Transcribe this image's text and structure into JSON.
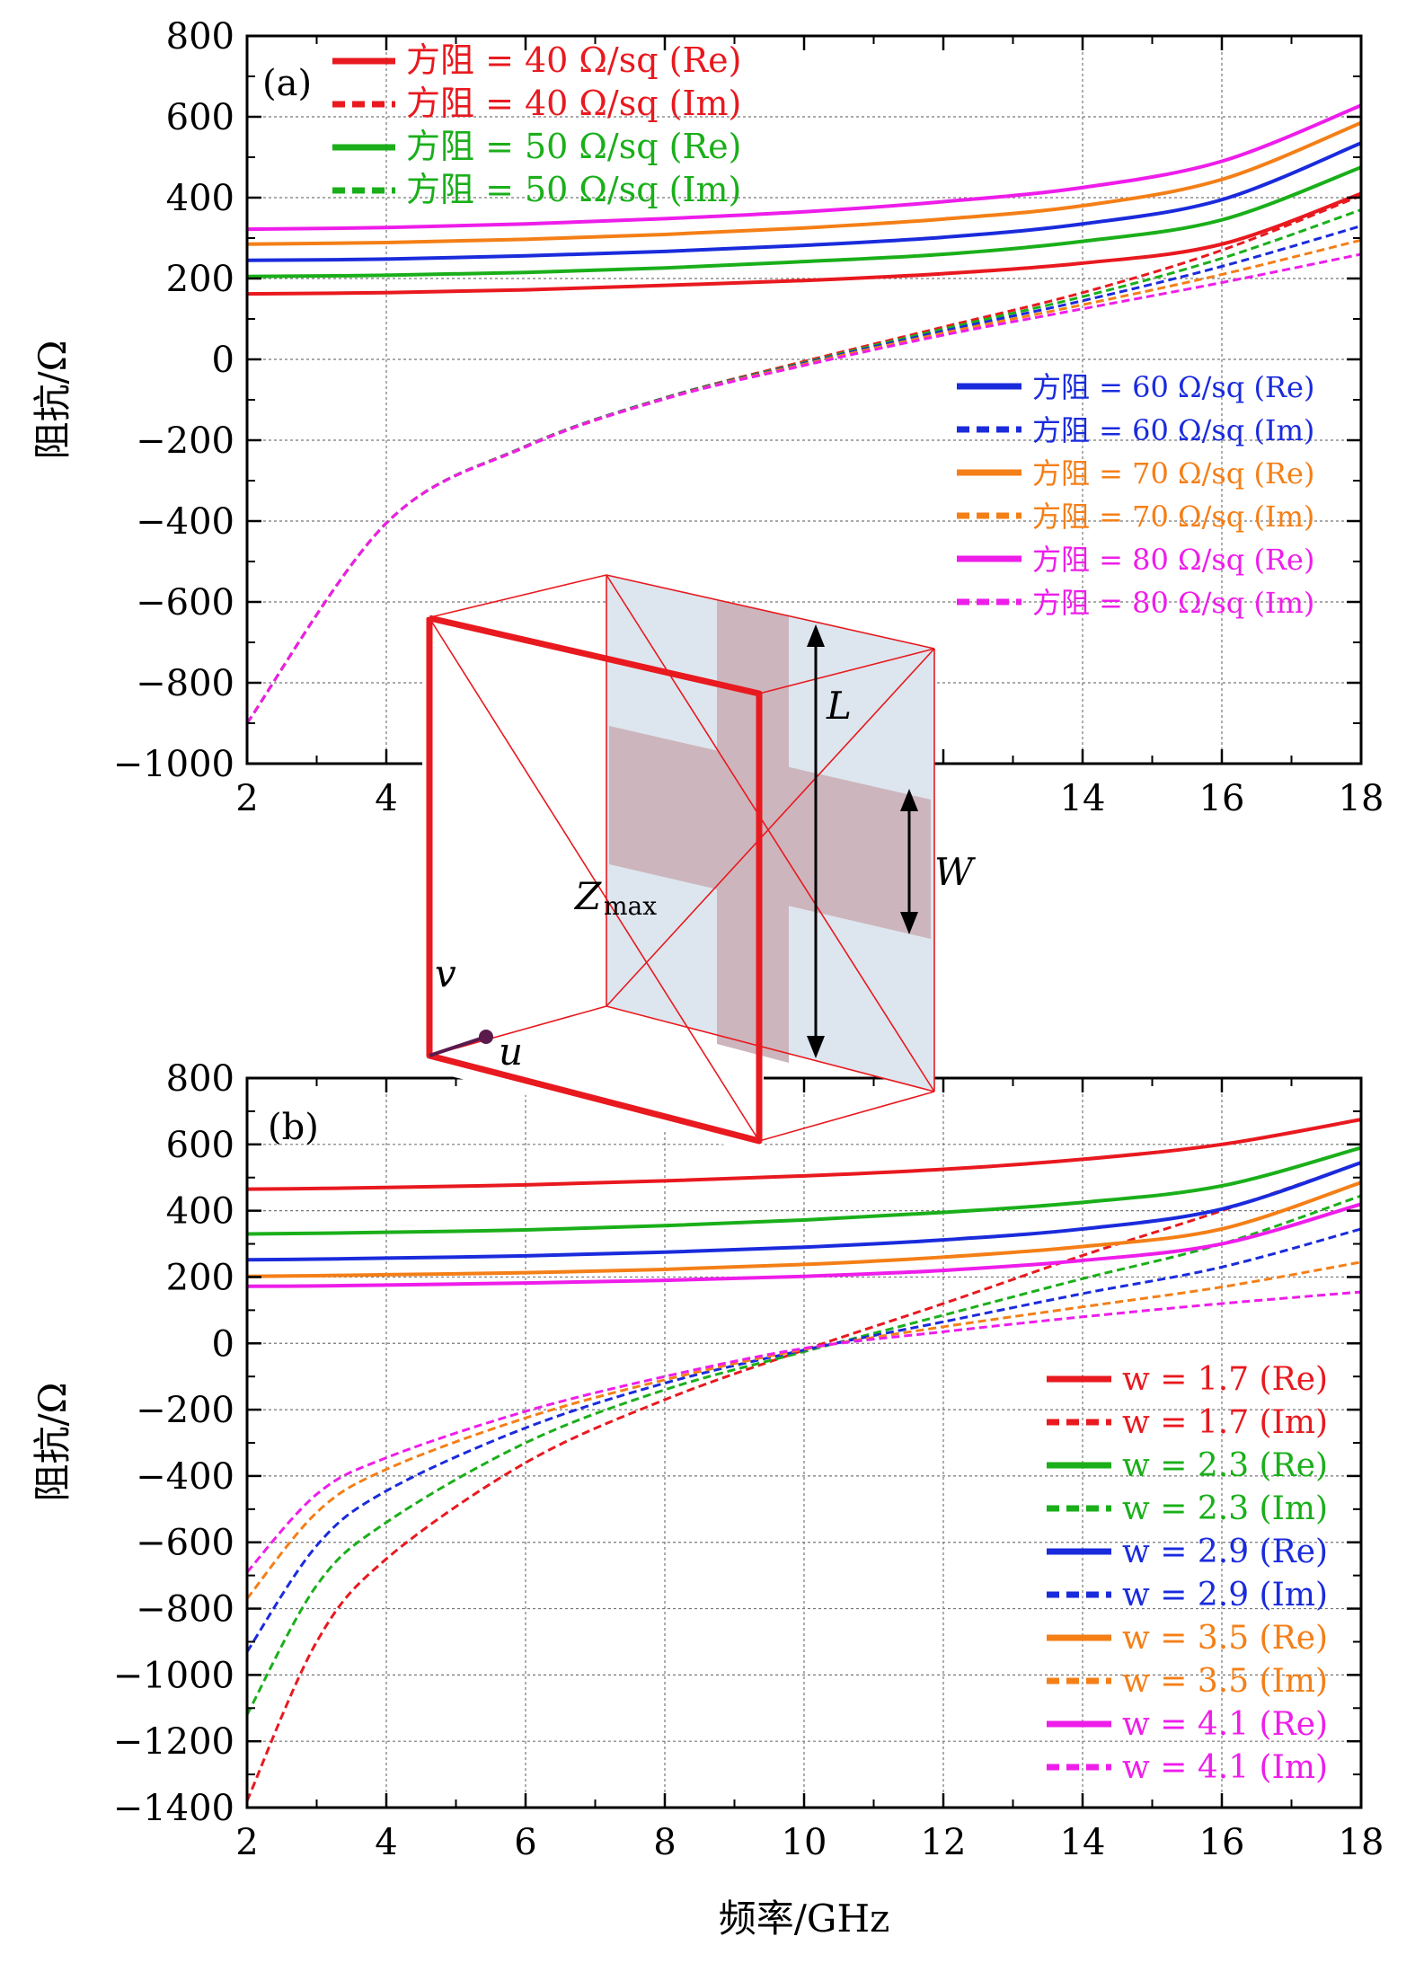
{
  "xlabel": "频率/GHz",
  "ylabel": "阻抗/Ω",
  "inset": {
    "label_L": "L",
    "label_W": "W",
    "label_Z": "Z",
    "label_Z_sub": "max",
    "label_u": "u",
    "label_v": "v",
    "colors": {
      "frame": "#e8191f",
      "panel": "#dde6ee",
      "strip": "#cdb5bd",
      "arrow": "#000000",
      "port": "#5a1a4c"
    }
  },
  "chart_data": [
    {
      "type": "line",
      "panel_label": "(a)",
      "xlim": [
        2,
        18
      ],
      "ylim": [
        -1000,
        800
      ],
      "xticks": [
        2,
        4,
        14,
        16,
        18
      ],
      "yticks": [
        -1000,
        -800,
        -600,
        -400,
        -200,
        0,
        200,
        400,
        600,
        800
      ],
      "xtick_labels": [
        "2",
        "4",
        "14",
        "16",
        "18"
      ],
      "ytick_labels": [
        "−1000",
        "−800",
        "−600",
        "−400",
        "−200",
        "0",
        "200",
        "400",
        "600",
        "800"
      ],
      "grid": true,
      "x": [
        2,
        4,
        6,
        8,
        10,
        12,
        14,
        16,
        18
      ],
      "series": [
        {
          "name": "方阻 = 40 Ω/sq (Re)",
          "color": "#e8191f",
          "style": "solid",
          "values": [
            162,
            165,
            172,
            183,
            195,
            212,
            238,
            285,
            410
          ]
        },
        {
          "name": "方阻 = 40 Ω/sq (Im)",
          "color": "#e8191f",
          "style": "dashed",
          "values": [
            -900,
            -405,
            -215,
            -95,
            -5,
            80,
            165,
            270,
            405
          ]
        },
        {
          "name": "方阻 = 50 Ω/sq (Re)",
          "color": "#1aaf1a",
          "style": "solid",
          "values": [
            205,
            208,
            215,
            226,
            242,
            260,
            292,
            345,
            475
          ]
        },
        {
          "name": "方阻 = 50 Ω/sq (Im)",
          "color": "#1aaf1a",
          "style": "dashed",
          "values": [
            -900,
            -405,
            -215,
            -95,
            -8,
            75,
            155,
            250,
            370
          ]
        },
        {
          "name": "方阻 = 60 Ω/sq (Re)",
          "color": "#1a2bdc",
          "style": "solid",
          "values": [
            245,
            248,
            256,
            267,
            282,
            302,
            335,
            395,
            535
          ]
        },
        {
          "name": "方阻 = 60 Ω/sq (Im)",
          "color": "#1a2bdc",
          "style": "dashed",
          "values": [
            -900,
            -405,
            -215,
            -96,
            -10,
            70,
            145,
            230,
            330
          ]
        },
        {
          "name": "方阻 = 70 Ω/sq (Re)",
          "color": "#f47f17",
          "style": "solid",
          "values": [
            285,
            289,
            297,
            309,
            325,
            347,
            380,
            445,
            585
          ]
        },
        {
          "name": "方阻 = 70 Ω/sq (Im)",
          "color": "#f47f17",
          "style": "dashed",
          "values": [
            -900,
            -405,
            -216,
            -97,
            -12,
            65,
            135,
            210,
            295
          ]
        },
        {
          "name": "方阻 = 80 Ω/sq (Re)",
          "color": "#ee1dea",
          "style": "solid",
          "values": [
            322,
            326,
            335,
            348,
            365,
            390,
            425,
            490,
            628
          ]
        },
        {
          "name": "方阻 = 80 Ω/sq (Im)",
          "color": "#ee1dea",
          "style": "dashed",
          "values": [
            -900,
            -405,
            -217,
            -98,
            -15,
            60,
            125,
            190,
            260
          ]
        }
      ]
    },
    {
      "type": "line",
      "panel_label": "(b)",
      "xlim": [
        2,
        18
      ],
      "ylim": [
        -1400,
        800
      ],
      "xticks": [
        2,
        4,
        6,
        8,
        10,
        12,
        14,
        16,
        18
      ],
      "yticks": [
        -1400,
        -1200,
        -1000,
        -800,
        -600,
        -400,
        -200,
        0,
        200,
        400,
        600,
        800
      ],
      "xtick_labels": [
        "2",
        "4",
        "6",
        "8",
        "10",
        "12",
        "14",
        "16",
        "18"
      ],
      "ytick_labels": [
        "−1400",
        "−1200",
        "−1000",
        "−800",
        "−600",
        "−400",
        "−200",
        "0",
        "200",
        "400",
        "600",
        "800"
      ],
      "grid": true,
      "x": [
        2,
        3,
        4,
        6,
        8,
        10,
        12,
        14,
        16,
        18
      ],
      "series": [
        {
          "name": "w = 1.7 (Re)",
          "color": "#e8191f",
          "style": "solid",
          "values": [
            465,
            467,
            470,
            478,
            490,
            505,
            525,
            555,
            600,
            675
          ]
        },
        {
          "name": "w = 1.7 (Im)",
          "color": "#e8191f",
          "style": "dashed",
          "values": [
            -1380,
            -900,
            -650,
            -360,
            -170,
            -20,
            120,
            265,
            400,
            545
          ]
        },
        {
          "name": "w = 2.3 (Re)",
          "color": "#1aaf1a",
          "style": "solid",
          "values": [
            330,
            332,
            335,
            342,
            355,
            372,
            395,
            425,
            475,
            590
          ]
        },
        {
          "name": "w = 2.3 (Im)",
          "color": "#1aaf1a",
          "style": "dashed",
          "values": [
            -1120,
            -730,
            -540,
            -300,
            -140,
            -25,
            85,
            195,
            300,
            445
          ]
        },
        {
          "name": "w = 2.9 (Re)",
          "color": "#1a2bdc",
          "style": "solid",
          "values": [
            252,
            254,
            257,
            264,
            275,
            290,
            312,
            345,
            405,
            545
          ]
        },
        {
          "name": "w = 2.9 (Im)",
          "color": "#1a2bdc",
          "style": "dashed",
          "values": [
            -930,
            -610,
            -445,
            -255,
            -120,
            -20,
            65,
            150,
            230,
            345
          ]
        },
        {
          "name": "w = 3.5 (Re)",
          "color": "#f47f17",
          "style": "solid",
          "values": [
            202,
            204,
            207,
            213,
            223,
            238,
            260,
            292,
            345,
            485
          ]
        },
        {
          "name": "w = 3.5 (Im)",
          "color": "#f47f17",
          "style": "dashed",
          "values": [
            -770,
            -510,
            -380,
            -225,
            -110,
            -18,
            50,
            110,
            170,
            245
          ]
        },
        {
          "name": "w = 4.1 (Re)",
          "color": "#ee1dea",
          "style": "solid",
          "values": [
            172,
            173,
            176,
            182,
            190,
            202,
            220,
            250,
            300,
            420
          ]
        },
        {
          "name": "w = 4.1 (Im)",
          "color": "#ee1dea",
          "style": "dashed",
          "values": [
            -690,
            -455,
            -345,
            -205,
            -100,
            -15,
            35,
            80,
            120,
            155
          ]
        }
      ]
    }
  ]
}
